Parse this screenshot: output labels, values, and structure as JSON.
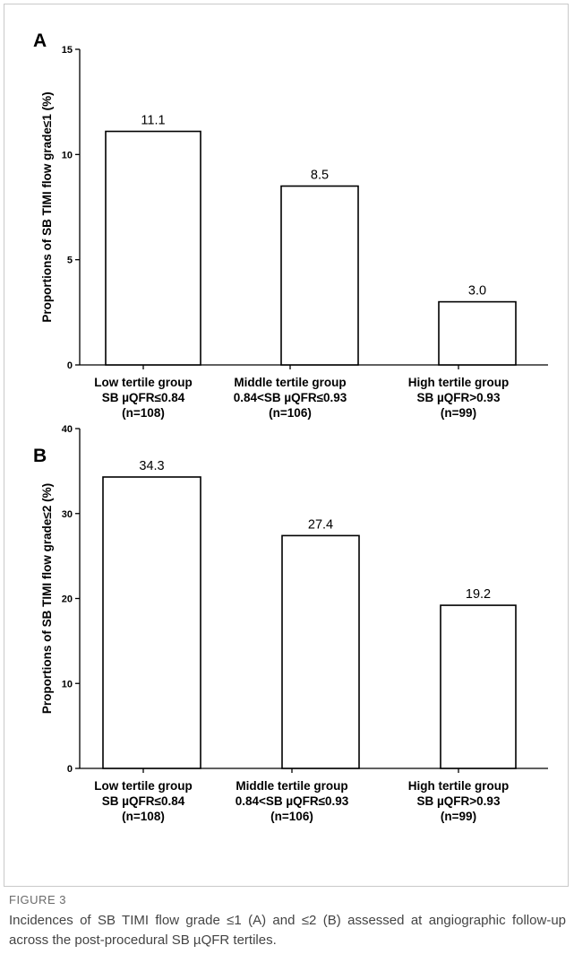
{
  "chart_data": [
    {
      "panel": "A",
      "type": "bar",
      "categories": [
        [
          "Low tertile group",
          "SB µQFR≤0.84",
          "(n=108)"
        ],
        [
          "Middle tertile group",
          "0.84<SB µQFR≤0.93",
          "(n=106)"
        ],
        [
          "High tertile group",
          "SB µQFR>0.93",
          "(n=99)"
        ]
      ],
      "values": [
        11.1,
        8.5,
        3.0
      ],
      "value_labels": [
        "11.1",
        "8.5",
        "3.0"
      ],
      "ylabel": "Proportions of SB TIMI flow grade≤1 (%)",
      "ylim": [
        0,
        15
      ],
      "yticks": [
        0,
        5,
        10,
        15
      ],
      "ytick_labels": [
        "0",
        "5",
        "10",
        "15"
      ],
      "bar_fill": "#ffffff",
      "bar_stroke": "#000000"
    },
    {
      "panel": "B",
      "type": "bar",
      "categories": [
        [
          "Low tertile group",
          "SB µQFR≤0.84",
          "(n=108)"
        ],
        [
          "Middle tertile group",
          "0.84<SB µQFR≤0.93",
          "(n=106)"
        ],
        [
          "High tertile group",
          "SB µQFR>0.93",
          "(n=99)"
        ]
      ],
      "values": [
        34.3,
        27.4,
        19.2
      ],
      "value_labels": [
        "34.3",
        "27.4",
        "19.2"
      ],
      "ylabel": "Proportions of SB TIMI flow grade≤2 (%)",
      "ylim": [
        0,
        40
      ],
      "yticks": [
        0,
        10,
        20,
        30,
        40
      ],
      "ytick_labels": [
        "0",
        "10",
        "20",
        "30",
        "40"
      ],
      "bar_fill": "#ffffff",
      "bar_stroke": "#000000"
    }
  ],
  "caption": {
    "label": "FIGURE 3",
    "text": "Incidences of SB TIMI flow grade ≤1 (A) and ≤2 (B) assessed at angiographic follow-up across the post-procedural SB µQFR tertiles."
  }
}
